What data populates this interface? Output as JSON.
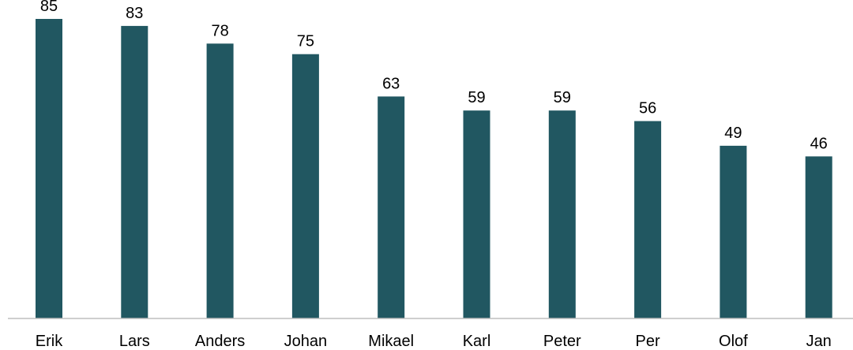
{
  "colors": {
    "bar": "#215761",
    "baseline": "#bfbfbf",
    "text": "#000000"
  },
  "chart_data": {
    "type": "bar",
    "categories": [
      "Erik",
      "Lars",
      "Anders",
      "Johan",
      "Mikael",
      "Karl",
      "Peter",
      "Per",
      "Olof",
      "Jan"
    ],
    "values": [
      85,
      83,
      78,
      75,
      63,
      59,
      59,
      56,
      49,
      46
    ],
    "data_labels": [
      "85",
      "83",
      "78",
      "75",
      "63",
      "59",
      "59",
      "56",
      "49",
      "46"
    ],
    "ylim": [
      0,
      85
    ],
    "grid": false,
    "legend": "none"
  }
}
